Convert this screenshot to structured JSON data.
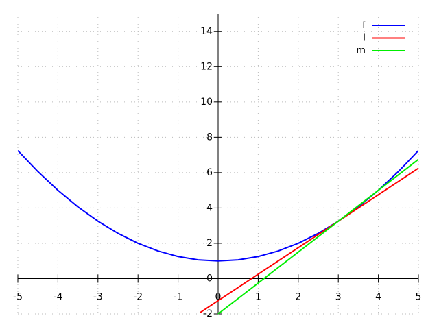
{
  "chart_data": {
    "type": "line",
    "xlim": [
      -5,
      5
    ],
    "ylim": [
      -2,
      15
    ],
    "xticks": [
      -5,
      -4,
      -3,
      -2,
      -1,
      0,
      1,
      2,
      3,
      4,
      5
    ],
    "yticks": [
      -2,
      0,
      2,
      4,
      6,
      8,
      10,
      12,
      14
    ],
    "grid": true,
    "legend": "top-right",
    "series": [
      {
        "name": "f",
        "color": "#0000ff",
        "x": [
          -5,
          -4.5,
          -4,
          -3.5,
          -3,
          -2.5,
          -2,
          -1.5,
          -1,
          -0.5,
          0,
          0.5,
          1,
          1.5,
          2,
          2.5,
          3,
          3.5,
          4,
          4.5,
          5
        ],
        "values": [
          7.25,
          6.0625,
          5,
          4.0625,
          3.25,
          2.5625,
          2,
          1.5625,
          1.25,
          1.0625,
          1,
          1.0625,
          1.25,
          1.5625,
          2,
          2.5625,
          3.25,
          4.0625,
          5,
          6.0625,
          7.25
        ]
      },
      {
        "name": "l",
        "color": "#ff0000",
        "x": [
          -0.45,
          5
        ],
        "values": [
          -1.925,
          6.25
        ]
      },
      {
        "name": "m",
        "color": "#00ee00",
        "x": [
          0,
          5
        ],
        "values": [
          -2,
          6.75
        ]
      }
    ]
  }
}
